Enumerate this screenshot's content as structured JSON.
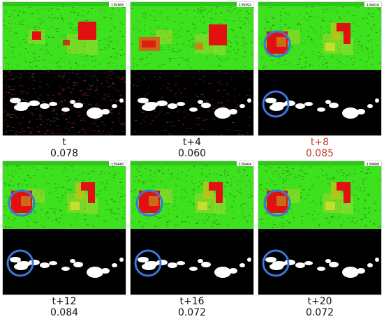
{
  "panels": [
    {
      "label": "t",
      "value": "0.078",
      "frame": "139368",
      "highlight": false,
      "circle": false,
      "noise": 1.0
    },
    {
      "label": "t+4",
      "value": "0.060",
      "frame": "139392",
      "highlight": false,
      "circle": false,
      "noise": 0.45
    },
    {
      "label": "t+8",
      "value": "0.085",
      "frame": "139416",
      "highlight": true,
      "circle": true,
      "noise": 0.0
    },
    {
      "label": "t+12",
      "value": "0.084",
      "frame": "139440",
      "highlight": false,
      "circle": true,
      "noise": 0.0
    },
    {
      "label": "t+16",
      "value": "0.072",
      "frame": "139464",
      "highlight": false,
      "circle": true,
      "noise": 0.0
    },
    {
      "label": "t+20",
      "value": "0.072",
      "frame": "139488",
      "highlight": false,
      "circle": true,
      "noise": 0.0
    }
  ],
  "colors": {
    "grass": "#3ee11e",
    "red": "#e21010",
    "orange": "#c86a1a",
    "yellow": "#a9d42a",
    "circle": "#3a78d8",
    "highlight": "#c0392b"
  }
}
